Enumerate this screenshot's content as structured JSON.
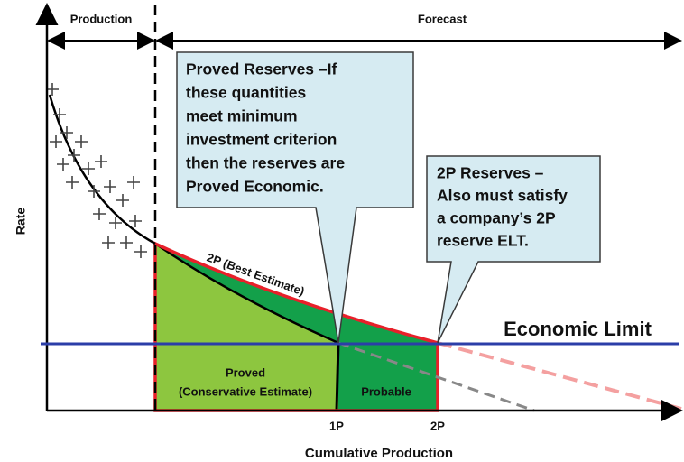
{
  "header": {
    "production": "Production",
    "forecast": "Forecast"
  },
  "axes": {
    "y_label": "Rate",
    "x_label": "Cumulative Production",
    "x_marks": [
      "1P",
      "2P"
    ]
  },
  "callouts": [
    {
      "lines": [
        "Proved Reserves –If",
        "these quantities",
        "meet  minimum",
        "investment criterion",
        "then the reserves are",
        "Proved Economic."
      ]
    },
    {
      "lines": [
        "2P Reserves –",
        "Also must satisfy",
        "a company’s 2P",
        "reserve ELT."
      ]
    }
  ],
  "labels": {
    "best_estimate": "2P (Best Estimate)",
    "economic_limit": "Economic Limit",
    "proved": "Proved",
    "conservative": "(Conservative Estimate)",
    "probable": "Probable"
  }
}
